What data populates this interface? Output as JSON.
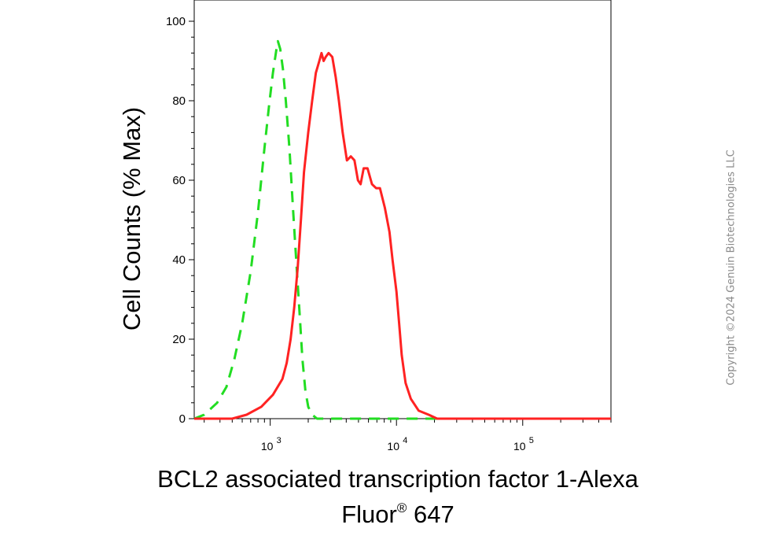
{
  "chart_data": {
    "type": "line",
    "xscale": "log",
    "xlim": [
      250,
      500000
    ],
    "ylim": [
      0,
      100
    ],
    "yticks": [
      0,
      20,
      40,
      60,
      80,
      100
    ],
    "ytick_labels": [
      "0",
      "20",
      "40",
      "60",
      "80",
      "100"
    ],
    "xticks": [
      {
        "value": 1000,
        "base": "10",
        "exp": "3"
      },
      {
        "value": 10000,
        "base": "10",
        "exp": "4"
      },
      {
        "value": 100000,
        "base": "10",
        "exp": "5"
      }
    ],
    "ylabel": "Cell Counts (% Max)",
    "xlabel_line1": "BCL2 associated transcription factor 1-Alexa",
    "xlabel_line2_prefix": "Fluor",
    "xlabel_line2_sup": "®",
    "xlabel_line2_suffix": " 647",
    "series": [
      {
        "color": "#22dd22",
        "style": "dashed",
        "points": [
          [
            250,
            0
          ],
          [
            300,
            1
          ],
          [
            380,
            4
          ],
          [
            450,
            8
          ],
          [
            520,
            15
          ],
          [
            600,
            24
          ],
          [
            700,
            37
          ],
          [
            800,
            52
          ],
          [
            900,
            68
          ],
          [
            980,
            79
          ],
          [
            1050,
            87
          ],
          [
            1120,
            93
          ],
          [
            1150,
            95
          ],
          [
            1200,
            93
          ],
          [
            1260,
            88
          ],
          [
            1330,
            80
          ],
          [
            1420,
            68
          ],
          [
            1520,
            52
          ],
          [
            1620,
            38
          ],
          [
            1720,
            25
          ],
          [
            1800,
            15
          ],
          [
            1900,
            7
          ],
          [
            2000,
            3
          ],
          [
            2150,
            1
          ],
          [
            2350,
            0
          ],
          [
            4000,
            0
          ],
          [
            10000,
            0
          ],
          [
            30000,
            0
          ],
          [
            100000,
            0
          ],
          [
            500000,
            0
          ]
        ]
      },
      {
        "color": "#ff2222",
        "style": "solid",
        "points": [
          [
            250,
            0
          ],
          [
            500,
            0
          ],
          [
            650,
            1
          ],
          [
            850,
            3
          ],
          [
            1050,
            6
          ],
          [
            1250,
            10
          ],
          [
            1350,
            14
          ],
          [
            1450,
            20
          ],
          [
            1550,
            28
          ],
          [
            1650,
            38
          ],
          [
            1750,
            50
          ],
          [
            1850,
            62
          ],
          [
            2000,
            72
          ],
          [
            2150,
            80
          ],
          [
            2300,
            87
          ],
          [
            2450,
            90
          ],
          [
            2550,
            92
          ],
          [
            2650,
            90
          ],
          [
            2750,
            91
          ],
          [
            2900,
            92
          ],
          [
            3100,
            91
          ],
          [
            3300,
            86
          ],
          [
            3500,
            80
          ],
          [
            3750,
            72
          ],
          [
            4050,
            65
          ],
          [
            4350,
            66
          ],
          [
            4650,
            65
          ],
          [
            4950,
            60
          ],
          [
            5200,
            59
          ],
          [
            5500,
            63
          ],
          [
            5900,
            63
          ],
          [
            6400,
            59
          ],
          [
            6900,
            58
          ],
          [
            7400,
            58
          ],
          [
            8100,
            53
          ],
          [
            8800,
            47
          ],
          [
            9300,
            40
          ],
          [
            10000,
            32
          ],
          [
            10500,
            24
          ],
          [
            11000,
            16
          ],
          [
            11800,
            9
          ],
          [
            13000,
            5
          ],
          [
            15000,
            2
          ],
          [
            18000,
            1
          ],
          [
            21000,
            0
          ],
          [
            100000,
            0
          ],
          [
            500000,
            0
          ]
        ]
      }
    ]
  },
  "watermark": "Copyright ©2024 Genuin Biotechnologies LLC"
}
